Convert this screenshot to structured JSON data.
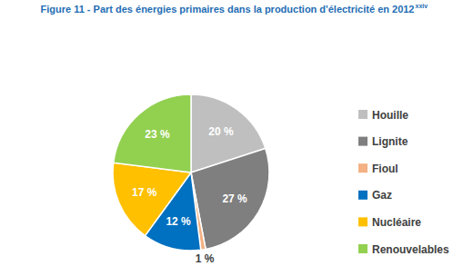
{
  "chart_data": {
    "type": "pie",
    "title": "Figure 11 - Part des énergies primaires dans la production d'électricité en 2012",
    "annotations": [
      "xxiv"
    ],
    "categories": [
      "Houille",
      "Lignite",
      "Fioul",
      "Gaz",
      "Nucléaire",
      "Renouvelables"
    ],
    "values": [
      20,
      27,
      1,
      12,
      17,
      23
    ],
    "value_labels": [
      "20 %",
      "27 %",
      "1 %",
      "12 %",
      "17 %",
      "23 %"
    ],
    "colors": [
      "#bfbfbf",
      "#7f7f7f",
      "#f4b183",
      "#0070c0",
      "#ffc000",
      "#92d050"
    ],
    "data_labels": true,
    "legend": "right"
  }
}
